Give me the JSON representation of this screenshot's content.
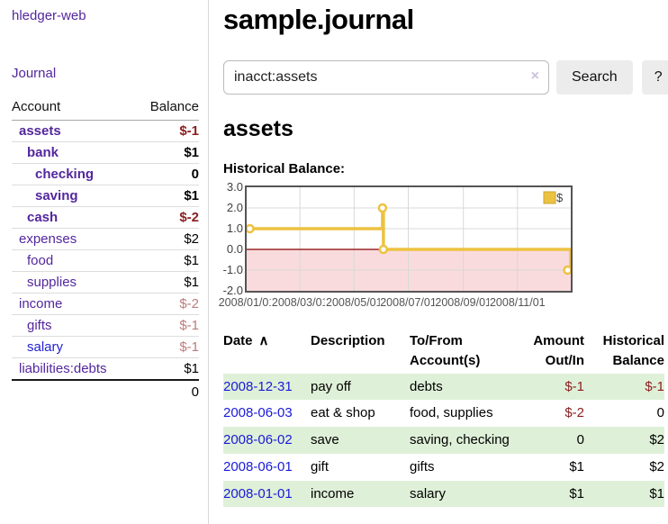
{
  "app": {
    "title": "hledger-web",
    "nav_journal": "Journal"
  },
  "sidebar": {
    "table_headers": {
      "account": "Account",
      "balance": "Balance"
    },
    "accounts": [
      {
        "name": "assets",
        "balance": "$-1"
      },
      {
        "name": "bank",
        "balance": "$1"
      },
      {
        "name": "checking",
        "balance": "0"
      },
      {
        "name": "saving",
        "balance": "$1"
      },
      {
        "name": "cash",
        "balance": "$-2"
      },
      {
        "name": "expenses",
        "balance": "$2"
      },
      {
        "name": "food",
        "balance": "$1"
      },
      {
        "name": "supplies",
        "balance": "$1"
      },
      {
        "name": "income",
        "balance": "$-2"
      },
      {
        "name": "gifts",
        "balance": "$-1"
      },
      {
        "name": "salary",
        "balance": "$-1"
      },
      {
        "name": "liabilities:debts",
        "balance": "$1"
      }
    ],
    "total": "0"
  },
  "header": {
    "title": "sample.journal"
  },
  "search": {
    "value": "inacct:assets",
    "clear_icon": "×",
    "button": "Search",
    "help_button": "?"
  },
  "account_page": {
    "title": "assets",
    "chart_label": "Historical Balance:"
  },
  "chart_data": {
    "type": "line",
    "title": "Historical Balance",
    "step": true,
    "x": [
      "2008-01-01",
      "2008-06-02",
      "2008-06-03",
      "2008-12-31"
    ],
    "series": [
      {
        "name": "$",
        "values": [
          1,
          2,
          0,
          -1
        ]
      }
    ],
    "xlim": [
      "2008-01-01",
      "2008-12-31"
    ],
    "ylim": [
      -2,
      3
    ],
    "ytick_labels": [
      "3.0",
      "2.0",
      "1.0",
      "0.0",
      "-1.0",
      "-2.0"
    ],
    "xtick_labels": [
      "2008/01/01",
      "2008/03/01",
      "2008/05/01",
      "2008/07/01",
      "2008/09/01",
      "2008/11/01"
    ],
    "grid": true,
    "legend_position": "top-right",
    "legend": [
      {
        "label": "$",
        "color": "#edc240"
      }
    ],
    "line_color": "#edc240",
    "negative_region_fill": "#fadbdd",
    "zero_line_color": "#8b0000",
    "grid_color": "#d8d8d8"
  },
  "register_table": {
    "headers": {
      "date": "Date",
      "sort_indicator": "∧",
      "description": "Description",
      "tofrom": "To/From\nAccount(s)",
      "amount": "Amount\nOut/In",
      "historical": "Historical\nBalance"
    },
    "rows": [
      {
        "date": "2008-12-31",
        "description": "pay off",
        "accounts": "debts",
        "amount": "$-1",
        "historical": "$-1"
      },
      {
        "date": "2008-06-03",
        "description": "eat & shop",
        "accounts": "food, supplies",
        "amount": "$-2",
        "historical": "0"
      },
      {
        "date": "2008-06-02",
        "description": "save",
        "accounts": "saving, checking",
        "amount": "0",
        "historical": "$2"
      },
      {
        "date": "2008-06-01",
        "description": "gift",
        "accounts": "gifts",
        "amount": "$1",
        "historical": "$2"
      },
      {
        "date": "2008-01-01",
        "description": "income",
        "accounts": "salary",
        "amount": "$1",
        "historical": "$1"
      }
    ]
  },
  "colors": {
    "link_purple": "#53279d",
    "link_blue": "#2323d4",
    "negative_strong": "#8b1e1e",
    "negative_muted": "#bc7b7b",
    "row_green": "#dff0d8",
    "chart_yellow": "#edc240",
    "chart_negative_fill": "#fadbdd",
    "zero_line": "#8b0000"
  }
}
